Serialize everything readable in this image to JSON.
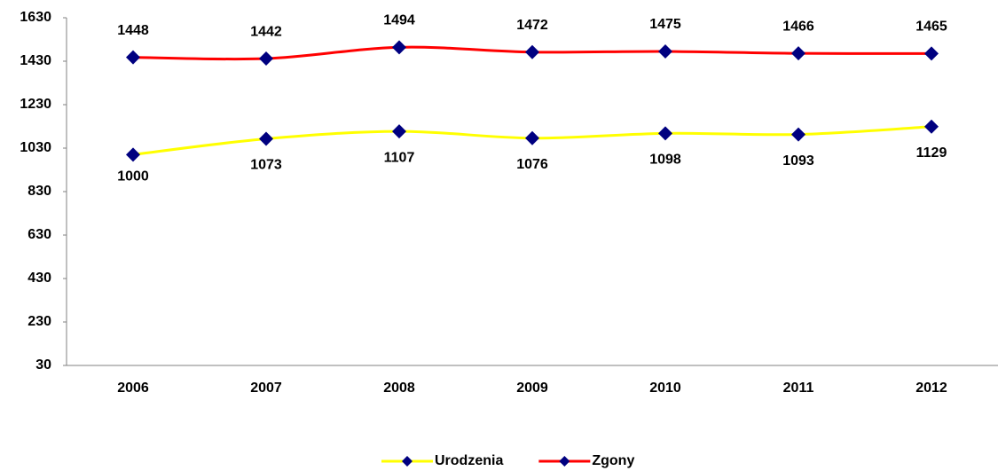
{
  "chart_data": {
    "type": "line",
    "categories": [
      "2006",
      "2007",
      "2008",
      "2009",
      "2010",
      "2011",
      "2012"
    ],
    "series": [
      {
        "name": "Urodzenia",
        "color": "#ffff00",
        "marker_color": "#000080",
        "values": [
          1000,
          1073,
          1107,
          1076,
          1098,
          1093,
          1129
        ]
      },
      {
        "name": "Zgony",
        "color": "#ff0000",
        "marker_color": "#000080",
        "values": [
          1448,
          1442,
          1494,
          1472,
          1475,
          1466,
          1465
        ]
      }
    ],
    "ylim": [
      30,
      1630
    ],
    "yticks": [
      30,
      230,
      430,
      630,
      830,
      1030,
      1230,
      1430,
      1630
    ],
    "grid": false,
    "legend": "bottom"
  }
}
